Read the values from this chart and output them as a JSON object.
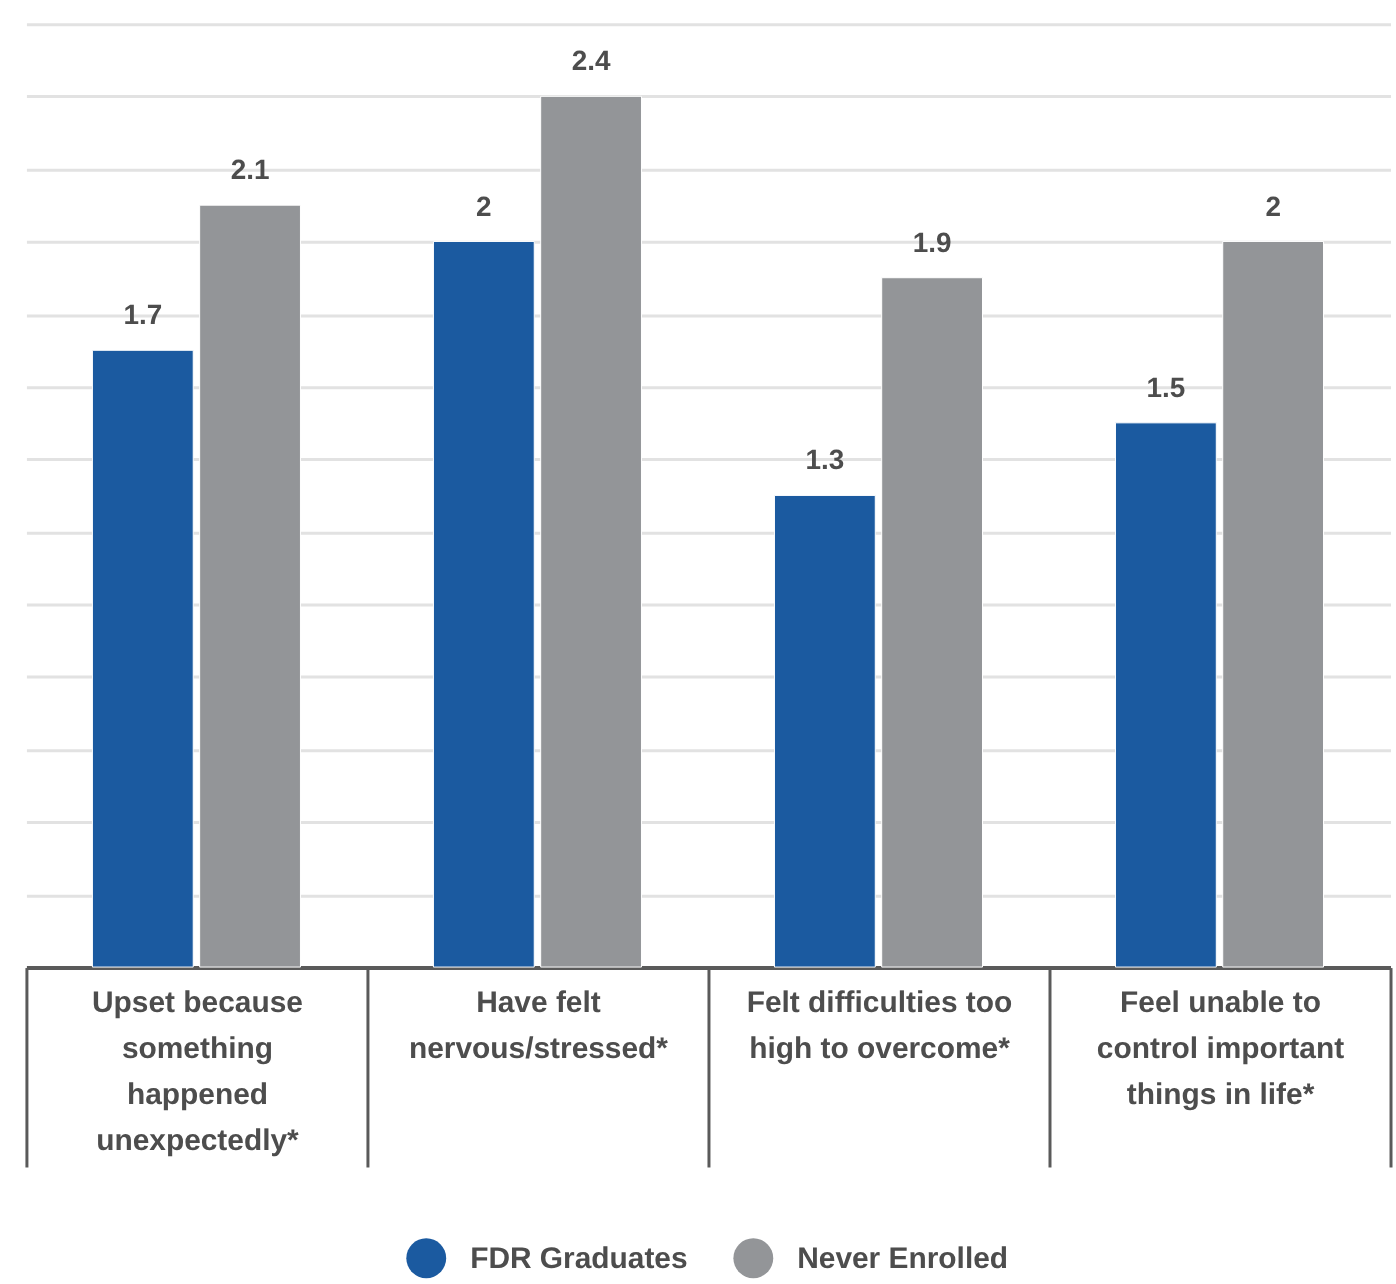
{
  "chart_data": {
    "type": "bar",
    "categories": [
      "Upset because something happened unexpectedly*",
      "Have felt nervous/stressed*",
      "Felt difficulties too high to overcome*",
      "Feel unable to control important things in life*"
    ],
    "series": [
      {
        "name": "FDR Graduates",
        "color": "#1b5aa0",
        "values": [
          1.7,
          2,
          1.3,
          1.5
        ]
      },
      {
        "name": "Never Enrolled",
        "color": "#939598",
        "values": [
          2.1,
          2.4,
          1.9,
          2
        ]
      }
    ],
    "ylim": [
      0,
      2.6
    ],
    "yticks": [
      0,
      0.2,
      0.4,
      0.6,
      0.8,
      1,
      1.2,
      1.4,
      1.6,
      1.8,
      2,
      2.2,
      2.4,
      2.6
    ],
    "tick_labels": "x",
    "grid": "y",
    "legend": "bottom",
    "data_labels": true
  }
}
